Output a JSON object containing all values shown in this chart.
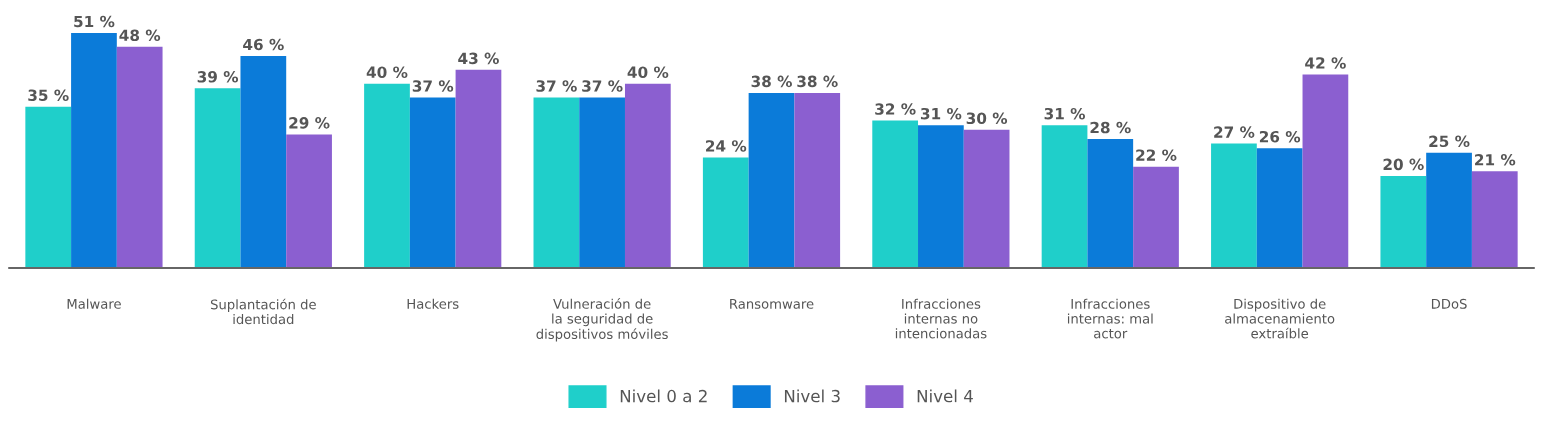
{
  "chart_data": {
    "type": "bar",
    "categories": [
      "Malware",
      "Suplantación de\nidentidad",
      "Hackers",
      "Vulneración de\nla seguridad de\ndispositivos móviles",
      "Ransomware",
      "Infracciones\ninternas no\nintencionadas",
      "Infracciones\ninternas: mal\nactor",
      "Dispositivo de\nalmacenamiento\nextraíble",
      "DDoS"
    ],
    "series": [
      {
        "name": "Nivel 0 a 2",
        "color": "#1fcfca",
        "values": [
          35,
          39,
          40,
          37,
          24,
          32,
          31,
          27,
          20
        ],
        "value_labels": [
          "35 %",
          "39 %",
          "40 %",
          "37 %",
          "24 %",
          "32 %",
          "31 %",
          "27 %",
          "20 %"
        ]
      },
      {
        "name": "Nivel 3",
        "color": "#0b7bd9",
        "values": [
          51,
          46,
          37,
          37,
          38,
          31,
          28,
          26,
          25
        ],
        "value_labels": [
          "51 %",
          "46 %",
          "37 %",
          "37 %",
          "38 %",
          "31 %",
          "28 %",
          "26 %",
          "25 %"
        ]
      },
      {
        "name": "Nivel 4",
        "color": "#8b5fd0",
        "values": [
          48,
          29,
          43,
          40,
          38,
          30,
          22,
          42,
          21
        ],
        "value_labels": [
          "48 %",
          "29 %",
          "43 %",
          "40 %",
          "38 %",
          "30 %",
          "22 %",
          "42 %",
          "21 %"
        ]
      }
    ],
    "legend": "bottom",
    "grid": false
  }
}
